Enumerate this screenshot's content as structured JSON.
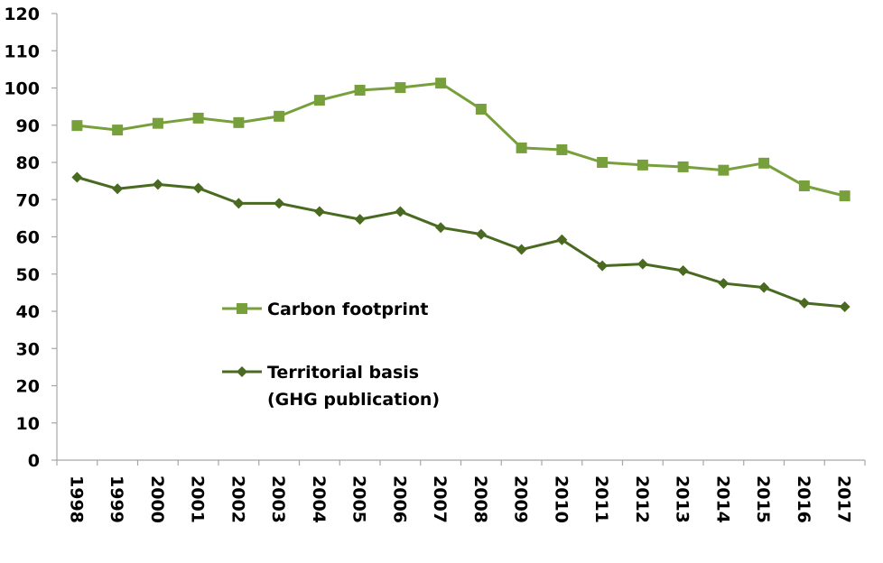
{
  "chart_data": {
    "type": "line",
    "title": "",
    "xlabel": "",
    "ylabel": "",
    "ylim": [
      0,
      120
    ],
    "yticks": [
      0,
      10,
      20,
      30,
      40,
      50,
      60,
      70,
      80,
      90,
      100,
      110,
      120
    ],
    "grid": false,
    "legend_position": "center-left",
    "categories": [
      "1998",
      "1999",
      "2000",
      "2001",
      "2002",
      "2003",
      "2004",
      "2005",
      "2006",
      "2007",
      "2008",
      "2009",
      "2010",
      "2011",
      "2012",
      "2013",
      "2014",
      "2015",
      "2016",
      "2017"
    ],
    "series": [
      {
        "name": "Carbon footprint",
        "legend_lines": [
          "Carbon footprint"
        ],
        "marker": "square",
        "color": "#77a03c",
        "values": [
          89.9,
          88.7,
          90.5,
          91.9,
          90.7,
          92.4,
          96.7,
          99.4,
          100.1,
          101.3,
          94.3,
          83.9,
          83.4,
          80.0,
          79.3,
          78.8,
          77.9,
          79.8,
          73.7,
          71.0
        ]
      },
      {
        "name": "Territorial basis (GHG publication)",
        "legend_lines": [
          "Territorial basis",
          "(GHG publication)"
        ],
        "marker": "diamond",
        "color": "#4a6a22",
        "values": [
          76.0,
          72.9,
          74.1,
          73.1,
          69.0,
          69.0,
          66.8,
          64.7,
          66.8,
          62.5,
          60.7,
          56.6,
          59.2,
          52.2,
          52.7,
          50.9,
          47.5,
          46.4,
          42.2,
          41.2
        ]
      }
    ]
  }
}
